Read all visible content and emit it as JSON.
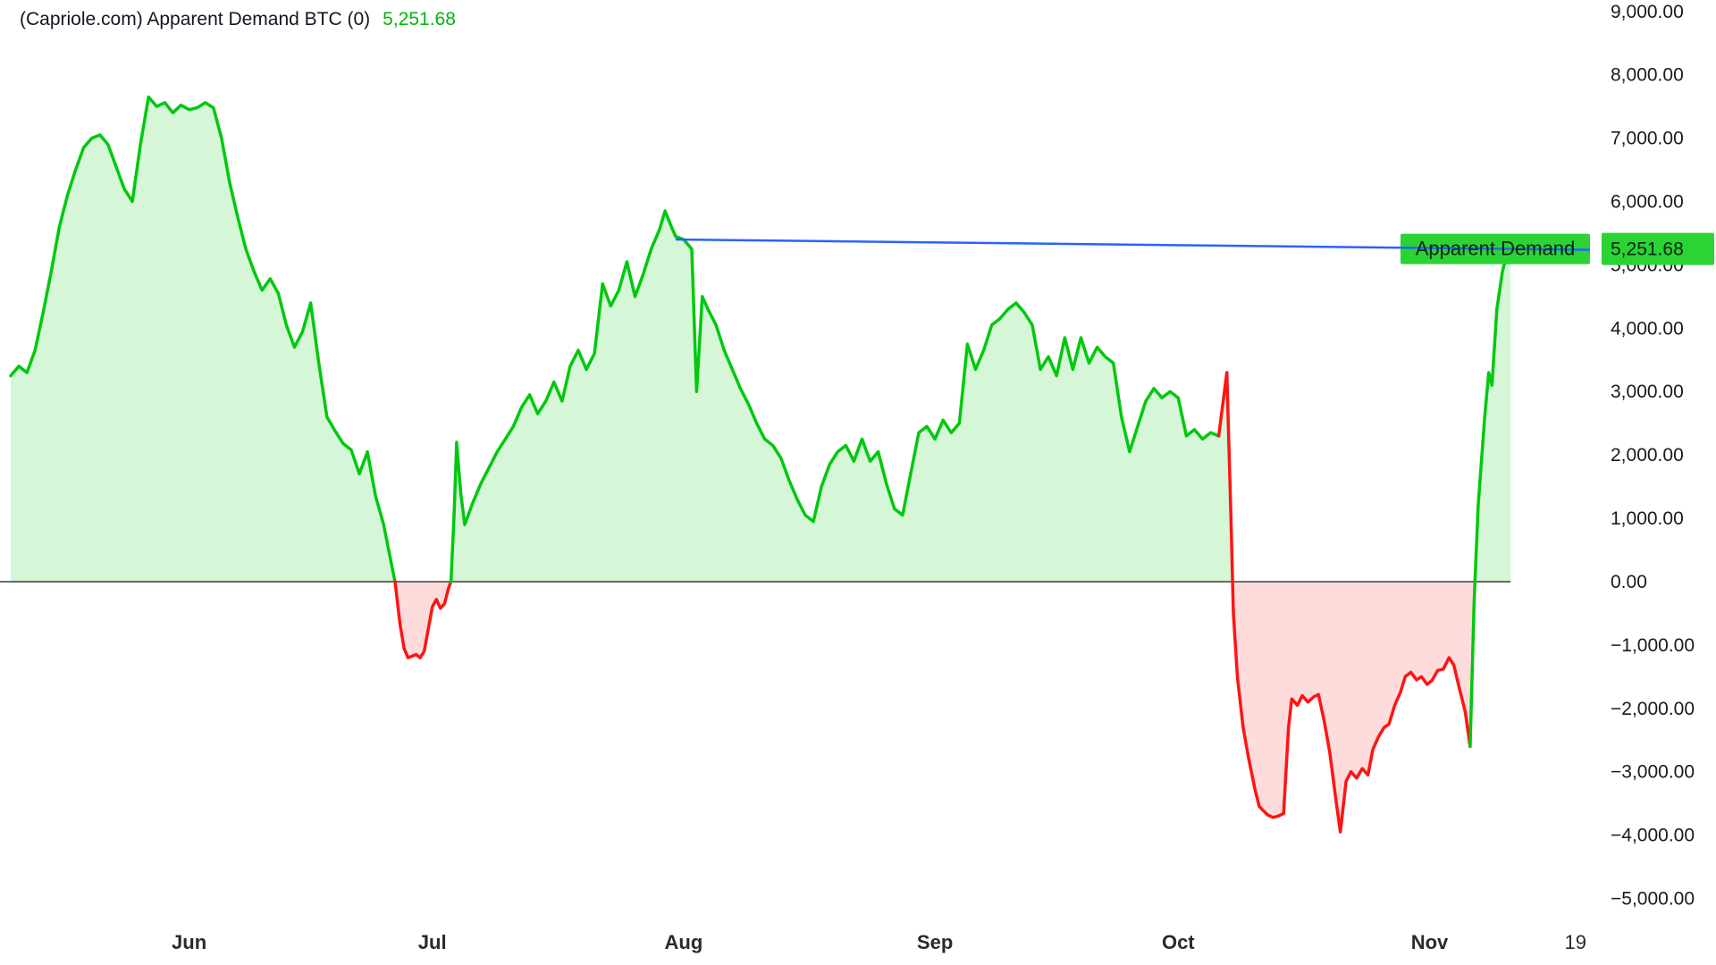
{
  "legend": {
    "title": "(Capriole.com) Apparent Demand BTC (0)",
    "value": "5,251.68"
  },
  "label_badge": {
    "text": "Apparent Demand"
  },
  "price_badge": {
    "text": "5,251.68"
  },
  "colors": {
    "green_line": "#00c80e",
    "green_fill": "rgba(0,200,14,0.16)",
    "red_line": "#ff1414",
    "red_fill": "rgba(255,20,20,0.15)",
    "blue_line": "#2962ff",
    "badge_bg": "#2bd334",
    "badge_text": "#09250b",
    "axis_text": "#1a1a1a",
    "month_text": "#2a2a2a",
    "zero_line": "#3c3c3c",
    "legend_title": "#131722",
    "legend_value": "#00b60c"
  },
  "chart_data": {
    "type": "area",
    "title": "(Capriole.com) Apparent Demand BTC (0)",
    "current_value": 5251.68,
    "x_unit": "days (day 0 = mid-May, months labeled at first day)",
    "x_domain": [
      0,
      196
    ],
    "x_ticks": [
      {
        "label": "Jun",
        "day": 22,
        "bold": true
      },
      {
        "label": "Jul",
        "day": 52,
        "bold": true
      },
      {
        "label": "Aug",
        "day": 83,
        "bold": true
      },
      {
        "label": "Sep",
        "day": 114,
        "bold": true
      },
      {
        "label": "Oct",
        "day": 144,
        "bold": true
      },
      {
        "label": "Nov",
        "day": 175,
        "bold": true
      },
      {
        "label": "19",
        "day": 193,
        "bold": false
      }
    ],
    "y_domain": [
      -6050,
      9180
    ],
    "y_ticks": [
      9000,
      8000,
      7000,
      6000,
      5000,
      4000,
      3000,
      2000,
      1000,
      0,
      -1000,
      -2000,
      -3000,
      -4000,
      -5000
    ],
    "y_tick_labels": [
      "9,000.00",
      "8,000.00",
      "7,000.00",
      "6,000.00",
      "5,000.00",
      "4,000.00",
      "3,000.00",
      "2,000.00",
      "1,000.00",
      "0.00",
      "−1,000.00",
      "−2,000.00",
      "−3,000.00",
      "−4,000.00",
      "−5,000.00"
    ],
    "grid": false,
    "legend_position": "top-left",
    "y_axis_position": "right",
    "zero_line_extent_days": [
      0,
      185
    ],
    "segments": [
      {
        "color": "green",
        "points": [
          [
            0,
            3250
          ],
          [
            1,
            3400
          ],
          [
            2,
            3300
          ],
          [
            3,
            3650
          ],
          [
            4,
            4250
          ],
          [
            5,
            4900
          ],
          [
            6,
            5600
          ],
          [
            7,
            6100
          ],
          [
            8,
            6500
          ],
          [
            9,
            6850
          ],
          [
            10,
            7000
          ],
          [
            11,
            7050
          ],
          [
            12,
            6900
          ],
          [
            13,
            6550
          ],
          [
            14,
            6200
          ],
          [
            15,
            6000
          ],
          [
            16,
            6900
          ],
          [
            17,
            7650
          ],
          [
            18,
            7500
          ],
          [
            19,
            7560
          ],
          [
            20,
            7400
          ],
          [
            21,
            7520
          ],
          [
            22,
            7450
          ],
          [
            23,
            7480
          ],
          [
            24,
            7560
          ],
          [
            25,
            7480
          ],
          [
            26,
            7000
          ],
          [
            27,
            6300
          ],
          [
            28,
            5750
          ],
          [
            29,
            5250
          ],
          [
            30,
            4900
          ],
          [
            31,
            4600
          ],
          [
            32,
            4780
          ],
          [
            33,
            4550
          ],
          [
            34,
            4050
          ],
          [
            35,
            3700
          ],
          [
            36,
            3950
          ],
          [
            37,
            4400
          ],
          [
            38,
            3450
          ],
          [
            39,
            2600
          ],
          [
            40,
            2380
          ],
          [
            41,
            2180
          ],
          [
            42,
            2080
          ],
          [
            43,
            1700
          ],
          [
            44,
            2050
          ],
          [
            45,
            1350
          ],
          [
            46,
            900
          ],
          [
            47,
            250
          ],
          [
            47.4,
            0
          ]
        ]
      },
      {
        "color": "red",
        "points": [
          [
            47.4,
            0
          ],
          [
            48,
            -650
          ],
          [
            48.5,
            -1050
          ],
          [
            49,
            -1200
          ],
          [
            50,
            -1150
          ],
          [
            50.5,
            -1200
          ],
          [
            51,
            -1100
          ],
          [
            52,
            -400
          ],
          [
            52.5,
            -280
          ],
          [
            53,
            -420
          ],
          [
            53.5,
            -350
          ],
          [
            54,
            -100
          ],
          [
            54.3,
            0
          ]
        ]
      },
      {
        "color": "green",
        "points": [
          [
            54.3,
            0
          ],
          [
            54.7,
            1100
          ],
          [
            55,
            2200
          ],
          [
            55.5,
            1400
          ],
          [
            56,
            900
          ],
          [
            57,
            1250
          ],
          [
            58,
            1550
          ],
          [
            59,
            1800
          ],
          [
            60,
            2050
          ],
          [
            61,
            2250
          ],
          [
            62,
            2450
          ],
          [
            63,
            2750
          ],
          [
            64,
            2950
          ],
          [
            65,
            2650
          ],
          [
            66,
            2850
          ],
          [
            67,
            3150
          ],
          [
            68,
            2850
          ],
          [
            69,
            3400
          ],
          [
            70,
            3650
          ],
          [
            71,
            3350
          ],
          [
            72,
            3600
          ],
          [
            73,
            4700
          ],
          [
            74,
            4350
          ],
          [
            75,
            4600
          ],
          [
            76,
            5050
          ],
          [
            77,
            4500
          ],
          [
            78,
            4850
          ],
          [
            79,
            5250
          ],
          [
            80,
            5550
          ],
          [
            80.7,
            5850
          ],
          [
            81.5,
            5600
          ],
          [
            82,
            5450
          ],
          [
            83,
            5400
          ],
          [
            84,
            5250
          ],
          [
            84.6,
            3000
          ],
          [
            85.3,
            4500
          ],
          [
            86,
            4300
          ],
          [
            87,
            4050
          ],
          [
            88,
            3650
          ],
          [
            89,
            3350
          ],
          [
            90,
            3050
          ],
          [
            91,
            2800
          ],
          [
            92,
            2500
          ],
          [
            93,
            2250
          ],
          [
            94,
            2150
          ],
          [
            95,
            1950
          ],
          [
            96,
            1600
          ],
          [
            97,
            1300
          ],
          [
            98,
            1050
          ],
          [
            99,
            950
          ],
          [
            100,
            1500
          ],
          [
            101,
            1850
          ],
          [
            102,
            2050
          ],
          [
            103,
            2150
          ],
          [
            104,
            1900
          ],
          [
            105,
            2250
          ],
          [
            106,
            1900
          ],
          [
            107,
            2050
          ],
          [
            108,
            1550
          ],
          [
            109,
            1150
          ],
          [
            110,
            1050
          ],
          [
            111,
            1700
          ],
          [
            112,
            2350
          ],
          [
            113,
            2450
          ],
          [
            114,
            2250
          ],
          [
            115,
            2550
          ],
          [
            116,
            2350
          ],
          [
            117,
            2500
          ],
          [
            118,
            3750
          ],
          [
            119,
            3350
          ],
          [
            120,
            3650
          ],
          [
            121,
            4050
          ],
          [
            122,
            4150
          ],
          [
            123,
            4300
          ],
          [
            124,
            4400
          ],
          [
            125,
            4250
          ],
          [
            126,
            4050
          ],
          [
            127,
            3350
          ],
          [
            128,
            3550
          ],
          [
            129,
            3250
          ],
          [
            130,
            3850
          ],
          [
            131,
            3350
          ],
          [
            132,
            3850
          ],
          [
            133,
            3450
          ],
          [
            134,
            3700
          ],
          [
            135,
            3550
          ],
          [
            136,
            3450
          ],
          [
            137,
            2600
          ],
          [
            138,
            2050
          ],
          [
            139,
            2450
          ],
          [
            140,
            2850
          ],
          [
            141,
            3050
          ],
          [
            142,
            2900
          ],
          [
            143,
            3000
          ],
          [
            144,
            2900
          ],
          [
            145,
            2300
          ],
          [
            146,
            2400
          ],
          [
            147,
            2250
          ],
          [
            148,
            2350
          ],
          [
            149,
            2300
          ]
        ]
      },
      {
        "color": "red",
        "points": [
          [
            149,
            2300
          ],
          [
            150,
            3300
          ],
          [
            150.5,
            1000
          ],
          [
            150.8,
            -500
          ],
          [
            151.3,
            -1500
          ],
          [
            152,
            -2300
          ],
          [
            152.7,
            -2800
          ],
          [
            153.5,
            -3300
          ],
          [
            154,
            -3550
          ],
          [
            155,
            -3680
          ],
          [
            155.7,
            -3720
          ],
          [
            156.3,
            -3700
          ],
          [
            157,
            -3660
          ],
          [
            157.6,
            -2300
          ],
          [
            158,
            -1850
          ],
          [
            158.7,
            -1950
          ],
          [
            159.3,
            -1800
          ],
          [
            160,
            -1900
          ],
          [
            160.7,
            -1820
          ],
          [
            161.3,
            -1780
          ],
          [
            162,
            -2200
          ],
          [
            162.7,
            -2700
          ],
          [
            163.4,
            -3400
          ],
          [
            164,
            -3950
          ],
          [
            164.7,
            -3150
          ],
          [
            165.3,
            -3000
          ],
          [
            166,
            -3100
          ],
          [
            166.7,
            -2950
          ],
          [
            167.4,
            -3050
          ],
          [
            168,
            -2650
          ],
          [
            168.7,
            -2450
          ],
          [
            169.4,
            -2300
          ],
          [
            170,
            -2250
          ],
          [
            170.7,
            -1950
          ],
          [
            171.4,
            -1750
          ],
          [
            172,
            -1500
          ],
          [
            172.7,
            -1430
          ],
          [
            173.4,
            -1550
          ],
          [
            174,
            -1500
          ],
          [
            174.7,
            -1620
          ],
          [
            175.3,
            -1560
          ],
          [
            176,
            -1400
          ],
          [
            176.7,
            -1380
          ],
          [
            177.4,
            -1200
          ],
          [
            178,
            -1320
          ],
          [
            178.7,
            -1700
          ],
          [
            179.4,
            -2050
          ],
          [
            180,
            -2600
          ]
        ]
      },
      {
        "color": "green",
        "points": [
          [
            180,
            -2600
          ],
          [
            180.5,
            -300
          ],
          [
            181,
            1200
          ],
          [
            181.8,
            2600
          ],
          [
            182.3,
            3300
          ],
          [
            182.7,
            3100
          ],
          [
            183.3,
            4300
          ],
          [
            184,
            4900
          ],
          [
            184.5,
            5150
          ],
          [
            185,
            5251.68
          ]
        ]
      }
    ],
    "trendline": {
      "color": "blue",
      "from": [
        82,
        5400
      ],
      "to": [
        185,
        5251.68
      ],
      "extend_to_day": 194.8
    }
  }
}
